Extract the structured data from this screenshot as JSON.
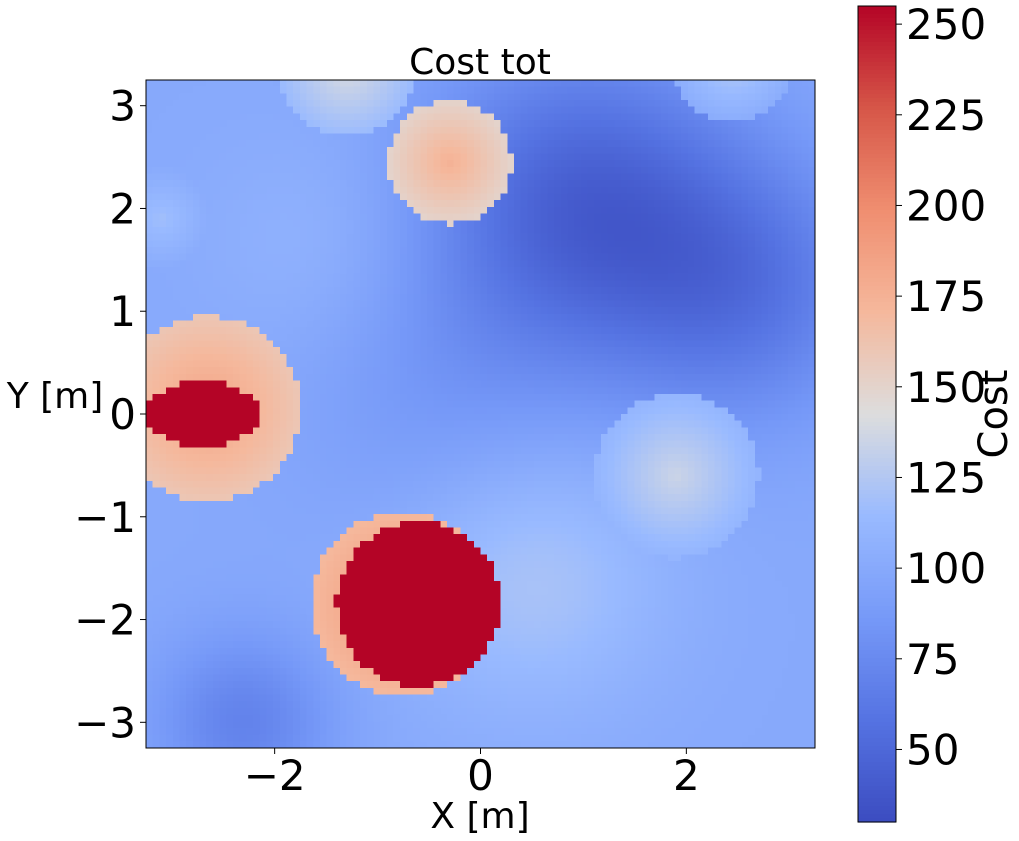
{
  "chart_data": {
    "type": "heatmap",
    "title": "Cost tot",
    "xlabel": "X [m]",
    "ylabel": "Y [m]",
    "xlim": [
      -3.25,
      3.25
    ],
    "ylim": [
      -3.25,
      3.25
    ],
    "x_ticks": [
      -2,
      0,
      2
    ],
    "x_tick_labels": [
      "−2",
      "0",
      "2"
    ],
    "y_ticks": [
      -3,
      -2,
      -1,
      0,
      1,
      2,
      3
    ],
    "y_tick_labels": [
      "−3",
      "−2",
      "−1",
      "0",
      "1",
      "2",
      "3"
    ],
    "grid": false,
    "colorbar": {
      "label": "Cost",
      "colormap": "coolwarm",
      "vmin": 30,
      "vmax": 255,
      "ticks": [
        50,
        75,
        100,
        125,
        150,
        175,
        200,
        225,
        250
      ],
      "tick_labels": [
        "50",
        "75",
        "100",
        "125",
        "150",
        "175",
        "200",
        "225",
        "250"
      ]
    },
    "background_field": {
      "base": 100,
      "low_regions": [
        {
          "x": 1.0,
          "y": 2.0,
          "sigma": 1.1,
          "depth": 55
        },
        {
          "x": 2.6,
          "y": 1.2,
          "sigma": 0.9,
          "depth": 35
        },
        {
          "x": -2.3,
          "y": -3.0,
          "sigma": 0.6,
          "depth": 30
        },
        {
          "x": -0.5,
          "y": 0.2,
          "sigma": 1.0,
          "depth": 12
        }
      ],
      "high_regions": [
        {
          "x": 0.5,
          "y": -1.6,
          "sigma": 0.9,
          "depth": 22
        },
        {
          "x": -1.5,
          "y": 1.6,
          "sigma": 0.8,
          "depth": 10
        }
      ]
    },
    "obstacles": [
      {
        "x": -2.65,
        "y": 0.05,
        "radius": 0.9,
        "value": 185
      },
      {
        "x": -0.75,
        "y": -1.85,
        "radius": 0.9,
        "value": 195
      },
      {
        "x": -0.3,
        "y": 2.45,
        "radius": 0.6,
        "value": 175
      },
      {
        "x": -1.3,
        "y": 3.35,
        "radius": 0.65,
        "value": 140
      },
      {
        "x": 1.9,
        "y": -0.6,
        "radius": 0.8,
        "value": 135
      },
      {
        "x": -3.1,
        "y": 1.9,
        "radius": 0.75,
        "value": 118
      },
      {
        "x": 2.45,
        "y": 3.45,
        "radius": 0.6,
        "value": 128
      }
    ],
    "lethal_regions": [
      {
        "x": -0.6,
        "y": -1.85,
        "radius": 0.8,
        "value": 255
      },
      {
        "x": -2.7,
        "y": 0.0,
        "rx": 0.55,
        "ry": 0.32,
        "value": 255
      }
    ]
  }
}
